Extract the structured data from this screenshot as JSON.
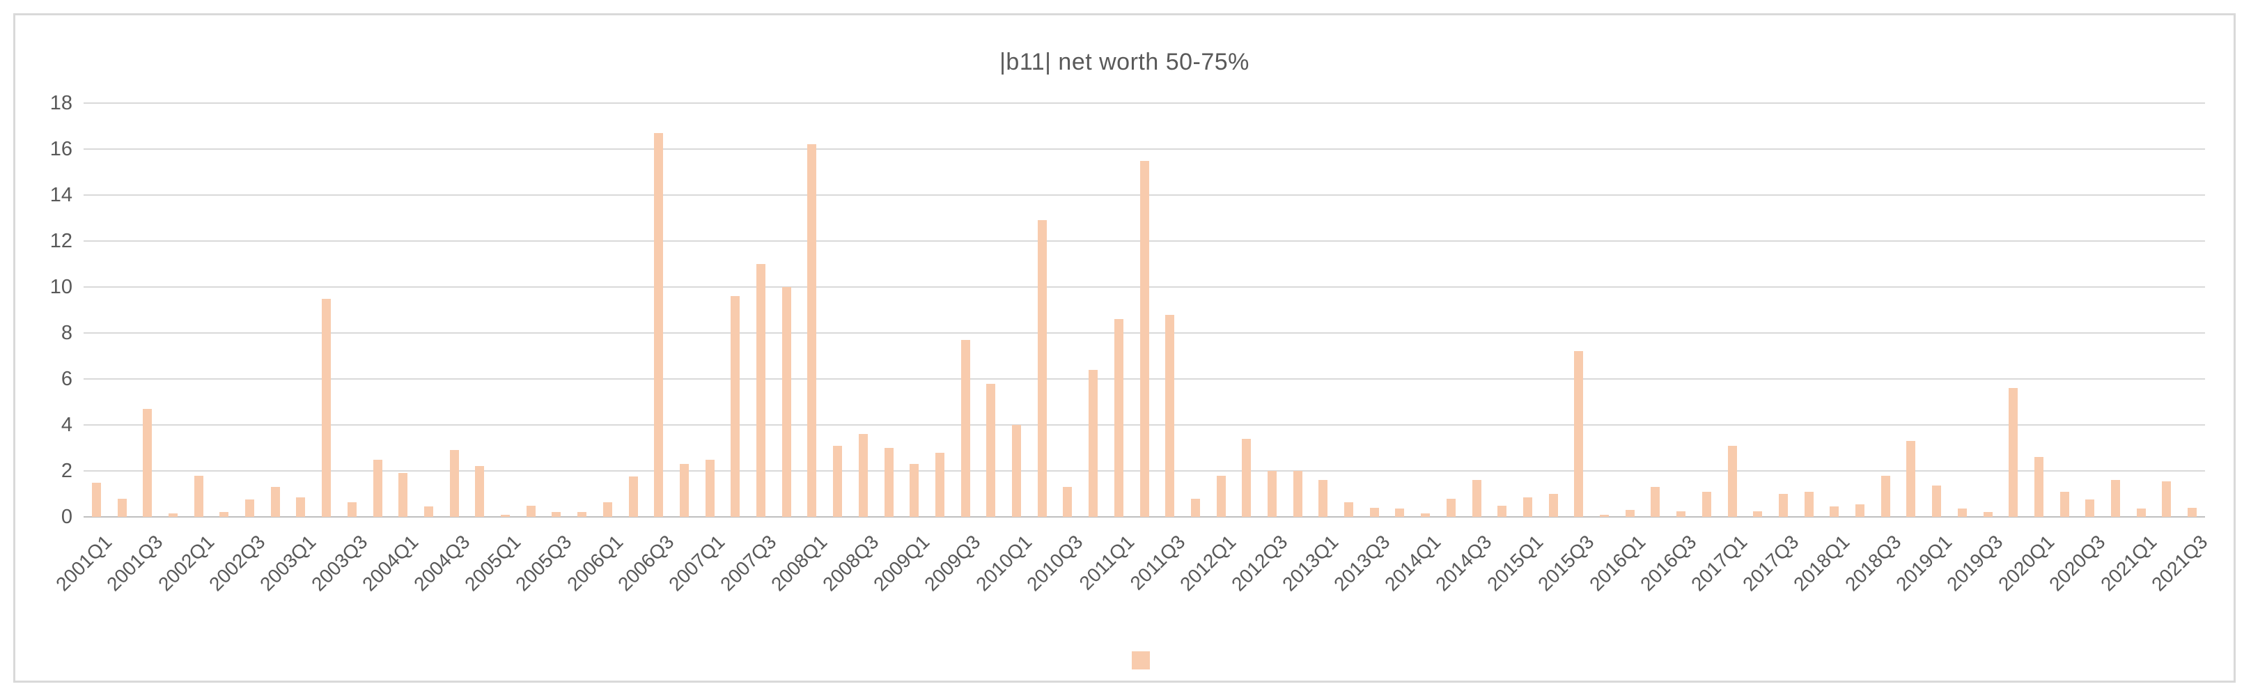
{
  "chart": {
    "title": "|b11| net worth 50-75%",
    "colors": {
      "bar": "#f8cbad",
      "gridline": "#d9d9d9",
      "zero_axis_line": "#bfbfbf",
      "text": "#595959",
      "frame_border": "#d9d9d9",
      "background": "#ffffff"
    },
    "legend": {
      "marker_color": "#f8cbad",
      "label": ""
    }
  },
  "chart_data": {
    "type": "bar",
    "title": "|b11| net worth 50-75%",
    "xlabel": "",
    "ylabel": "",
    "ylim": [
      0,
      18
    ],
    "ytick_step": 2,
    "yticks": [
      0,
      2,
      4,
      6,
      8,
      10,
      12,
      14,
      16,
      18
    ],
    "grid": true,
    "legend_position": "bottom-center",
    "x_label_rotation_deg": 45,
    "x_labels_shown_every": 2,
    "categories": [
      "2001Q1",
      "2001Q2",
      "2001Q3",
      "2001Q4",
      "2002Q1",
      "2002Q2",
      "2002Q3",
      "2002Q4",
      "2003Q1",
      "2003Q2",
      "2003Q3",
      "2003Q4",
      "2004Q1",
      "2004Q2",
      "2004Q3",
      "2004Q4",
      "2005Q1",
      "2005Q2",
      "2005Q3",
      "2005Q4",
      "2006Q1",
      "2006Q2",
      "2006Q3",
      "2006Q4",
      "2007Q1",
      "2007Q2",
      "2007Q3",
      "2007Q4",
      "2008Q1",
      "2008Q2",
      "2008Q3",
      "2008Q4",
      "2009Q1",
      "2009Q2",
      "2009Q3",
      "2009Q4",
      "2010Q1",
      "2010Q2",
      "2010Q3",
      "2010Q4",
      "2011Q1",
      "2011Q2",
      "2011Q3",
      "2011Q4",
      "2012Q1",
      "2012Q2",
      "2012Q3",
      "2012Q4",
      "2013Q1",
      "2013Q2",
      "2013Q3",
      "2013Q4",
      "2014Q1",
      "2014Q2",
      "2014Q3",
      "2014Q4",
      "2015Q1",
      "2015Q2",
      "2015Q3",
      "2015Q4",
      "2016Q1",
      "2016Q2",
      "2016Q3",
      "2016Q4",
      "2017Q1",
      "2017Q2",
      "2017Q3",
      "2017Q4",
      "2018Q1",
      "2018Q2",
      "2018Q3",
      "2018Q4",
      "2019Q1",
      "2019Q2",
      "2019Q3",
      "2019Q4",
      "2020Q1",
      "2020Q2",
      "2020Q3",
      "2020Q4",
      "2021Q1",
      "2021Q2",
      "2021Q3"
    ],
    "values": [
      1.5,
      0.8,
      4.7,
      0.15,
      1.8,
      0.2,
      0.75,
      1.3,
      0.85,
      9.5,
      0.65,
      2.5,
      1.9,
      0.45,
      2.9,
      2.2,
      0.1,
      0.5,
      0.2,
      0.2,
      0.65,
      1.75,
      16.7,
      2.3,
      2.5,
      9.6,
      11.0,
      10.0,
      16.2,
      3.1,
      3.6,
      3.0,
      2.3,
      2.8,
      7.7,
      5.8,
      4.0,
      12.9,
      1.3,
      6.4,
      8.6,
      15.5,
      8.8,
      0.8,
      1.8,
      3.4,
      2.0,
      2.0,
      1.6,
      0.65,
      0.4,
      0.35,
      0.15,
      0.8,
      1.6,
      0.5,
      0.85,
      1.0,
      7.2,
      0.1,
      0.3,
      1.3,
      0.25,
      1.1,
      3.1,
      0.25,
      1.0,
      1.1,
      0.45,
      0.55,
      1.8,
      3.3,
      1.35,
      0.35,
      0.2,
      5.6,
      2.6,
      1.1,
      0.75,
      1.6,
      0.35,
      1.55,
      0.4
    ]
  }
}
